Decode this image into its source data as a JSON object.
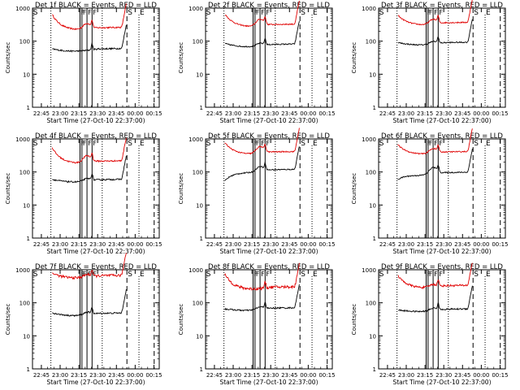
{
  "chart_data": [
    {
      "type": "line",
      "title": "Det 1f BLACK = Events, RED = LLD",
      "xlabel": "Start Time (27-Oct-10 22:37:00)",
      "ylabel": "Counts/sec",
      "red_base": 240,
      "black_base": 55,
      "red_bump": 0.12,
      "black_bump": 0.0,
      "red_start": 650,
      "black_start": 58,
      "red_noise": 0.05,
      "black_noise": 0.05,
      "red_flag": 0,
      "gap_start": 0
    },
    {
      "type": "line",
      "title": "Det 2f BLACK = Events, RED = LLD",
      "xlabel": "Start Time (27-Oct-10 22:37:00)",
      "ylabel": "Counts/sec",
      "red_base": 300,
      "black_base": 75,
      "red_bump": 0.15,
      "black_bump": 0.05,
      "red_start": 650,
      "black_start": 85,
      "red_noise": 0.04,
      "black_noise": 0.04,
      "red_flag": 0,
      "gap_start": 0
    },
    {
      "type": "line",
      "title": "Det 3f BLACK = Events, RED = LLD",
      "xlabel": "Start Time (27-Oct-10 22:37:00)",
      "ylabel": "Counts/sec",
      "red_base": 340,
      "black_base": 85,
      "red_bump": 0.1,
      "black_bump": 0.05,
      "red_start": 600,
      "black_start": 90,
      "red_noise": 0.04,
      "black_noise": 0.04,
      "red_flag": 0,
      "gap_start": 0
    },
    {
      "type": "line",
      "title": "Det 4f BLACK = Events, RED = LLD",
      "xlabel": "Start Time (27-Oct-10 22:37:00)",
      "ylabel": "Counts/sec",
      "red_base": 200,
      "black_base": 55,
      "red_bump": 0.15,
      "black_bump": 0.05,
      "red_start": 550,
      "black_start": 60,
      "red_noise": 0.05,
      "black_noise": 0.05,
      "red_flag": 0,
      "gap_start": 0
    },
    {
      "type": "line",
      "title": "Det 5f BLACK = Events, RED = LLD",
      "xlabel": "Start Time (27-Oct-10 22:37:00)",
      "ylabel": "Counts/sec",
      "red_base": 380,
      "black_base": 110,
      "red_bump": 0.15,
      "black_bump": 0.1,
      "red_start": 750,
      "black_start": 55,
      "red_noise": 0.04,
      "black_noise": 0.04,
      "red_flag": 0,
      "gap_start": 1
    },
    {
      "type": "line",
      "title": "Det 6f BLACK = Events, RED = LLD",
      "xlabel": "Start Time (27-Oct-10 22:37:00)",
      "ylabel": "Counts/sec",
      "red_base": 380,
      "black_base": 90,
      "red_bump": 0.1,
      "black_bump": 0.15,
      "red_start": 650,
      "black_start": 60,
      "red_noise": 0.04,
      "black_noise": 0.04,
      "red_flag": 0,
      "gap_start": 1
    },
    {
      "type": "line",
      "title": "Det 7f BLACK = Events, RED = LLD",
      "xlabel": "Start Time (27-Oct-10 22:37:00)",
      "ylabel": "Counts/sec",
      "red_base": 620,
      "black_base": 45,
      "red_bump": 0.05,
      "black_bump": 0.05,
      "red_start": 800,
      "black_start": 50,
      "red_noise": 0.09,
      "black_noise": 0.05,
      "red_flag": 0,
      "gap_start": 0
    },
    {
      "type": "line",
      "title": "Det 8f BLACK = Events, RED = LLD",
      "xlabel": "Start Time (27-Oct-10 22:37:00)",
      "ylabel": "Counts/sec",
      "red_base": 280,
      "black_base": 65,
      "red_bump": 0.0,
      "black_bump": 0.05,
      "red_start": 700,
      "black_start": 65,
      "red_noise": 0.1,
      "black_noise": 0.05,
      "red_flag": 1,
      "gap_start": 1
    },
    {
      "type": "line",
      "title": "Det 9f BLACK = Events, RED = LLD",
      "xlabel": "Start Time (27-Oct-10 22:37:00)",
      "ylabel": "Counts/sec",
      "red_base": 310,
      "black_base": 60,
      "red_bump": 0.05,
      "black_bump": 0.05,
      "red_start": 650,
      "black_start": 60,
      "red_noise": 0.07,
      "black_noise": 0.05,
      "red_flag": 0,
      "gap_start": 0
    }
  ],
  "shared_axes": {
    "xlim": [
      0.0,
      1.0
    ],
    "xticks": [
      "22:45",
      "23:00",
      "23:15",
      "23:30",
      "23:45",
      "00:00",
      "00:15"
    ],
    "ylim": [
      1,
      1000
    ],
    "ylog": true,
    "yticks": [
      "1",
      "10",
      "100",
      "1000"
    ],
    "markers": {
      "S": "S",
      "E": "E",
      "F": "F"
    }
  },
  "colors": {
    "events": "#000000",
    "lld": "#e00000",
    "axes": "#000000"
  }
}
